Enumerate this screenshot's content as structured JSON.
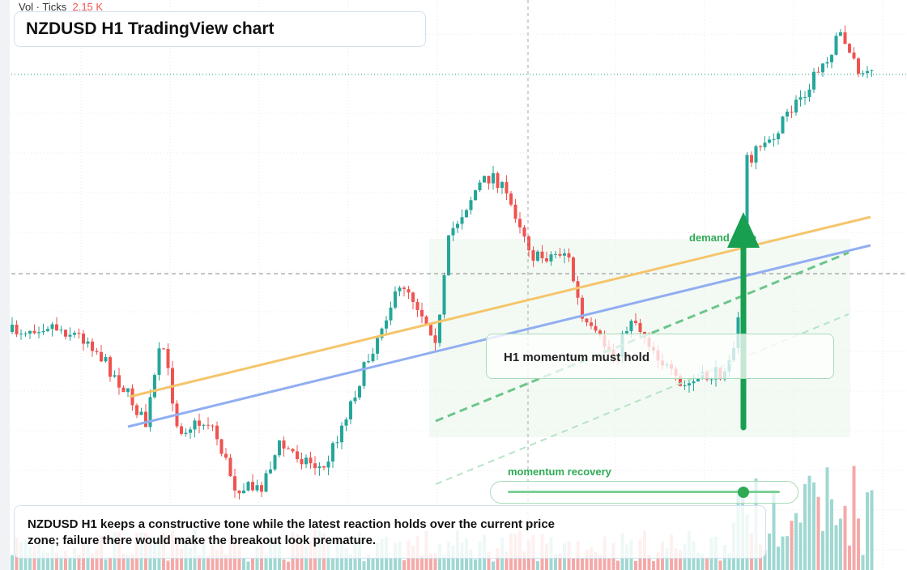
{
  "header": {
    "volume_label": "Vol · Ticks",
    "volume_value": "2.15 K",
    "title": "NZDUSD H1 TradingView chart"
  },
  "annotations": {
    "zone": "demand zone",
    "callout": "H1 momentum must hold",
    "slider": "momentum recovery"
  },
  "summary": "NZDUSD H1 keeps a constructive tone while the latest reaction holds over the current price zone; failure there would make the breakout look premature."
}
